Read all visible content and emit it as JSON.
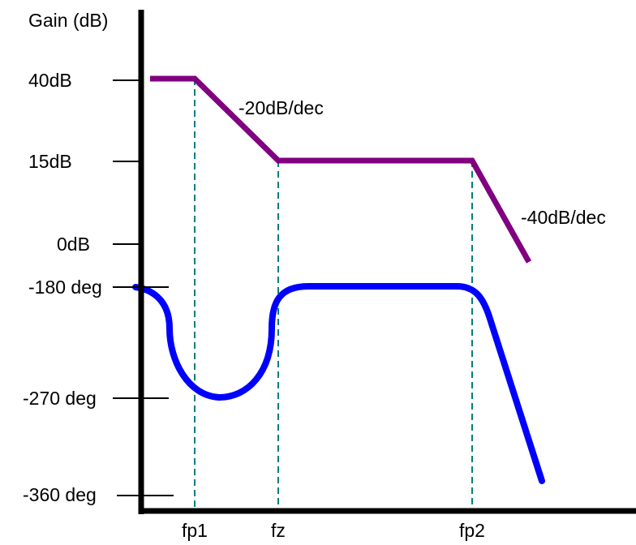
{
  "colors": {
    "axis": "#000000",
    "gain_curve": "#800080",
    "phase_curve": "#0000ff",
    "guide_lines": "#007f7f"
  },
  "y_axis_title": "Gain (dB)",
  "gain_ticks": [
    "40dB",
    "15dB",
    "0dB"
  ],
  "phase_ticks": [
    "-180 deg",
    "-270 deg",
    "-360 deg"
  ],
  "x_ticks": [
    "fp1",
    "fz",
    "fp2"
  ],
  "slope_labels": [
    "-20dB/dec",
    "-40dB/dec"
  ]
}
